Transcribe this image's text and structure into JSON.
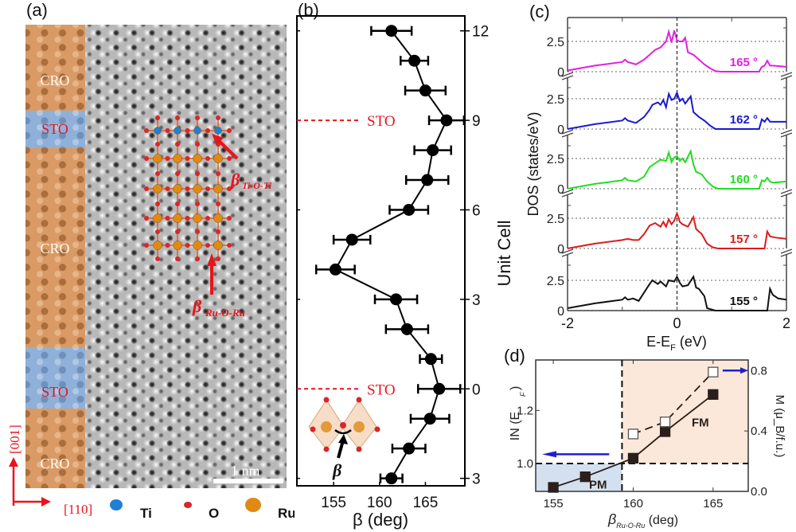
{
  "panels": {
    "a": {
      "label": "(a)",
      "layers": [
        {
          "name": "CRO",
          "type": "CRO"
        },
        {
          "name": "STO",
          "type": "STO"
        },
        {
          "name": "CRO",
          "type": "CRO"
        },
        {
          "name": "STO",
          "type": "STO"
        },
        {
          "name": "CRO",
          "type": "CRO"
        }
      ],
      "colors": {
        "CRO": "#d99a66",
        "STO": "#8fb0d8",
        "label_CRO": "#fffaf0",
        "label_STO": "#e8141c",
        "annotation": "#e8141c"
      },
      "annotations": {
        "beta_ti": {
          "symbol": "β",
          "subscript": "Ti-O-Ti"
        },
        "beta_ru": {
          "symbol": "β",
          "subscript": "Ru-O-Ru"
        }
      },
      "scale_bar": "1 nm",
      "axes": {
        "vertical": "[001]",
        "horizontal": "[110]"
      },
      "legend": [
        {
          "label": "Ti",
          "color": "#1e7fd6"
        },
        {
          "label": "O",
          "color": "#d9262a"
        },
        {
          "label": "Ru",
          "color": "#e08a14"
        }
      ]
    }
  },
  "chart_data": [
    {
      "id": "b",
      "label": "(b)",
      "type": "scatter",
      "title": "",
      "xlabel": "β (deg)",
      "ylabel": "Unit Cell",
      "xlim": [
        151,
        169.3
      ],
      "ylim": [
        -3.25,
        12.5
      ],
      "xticks": [
        155,
        160,
        165
      ],
      "yticks": [
        12,
        9,
        6,
        3,
        0,
        -3
      ],
      "ytick_labels": [
        "12",
        "9",
        "6",
        "3",
        "0",
        "3"
      ],
      "y_axis_side": "right",
      "series": [
        {
          "name": "β per unit cell",
          "x": [
            161.3,
            163.8,
            165.0,
            167.3,
            165.8,
            165.2,
            163.2,
            157.0,
            155.2,
            161.8,
            163.0,
            165.6,
            166.5,
            165.5,
            163.2,
            161.3
          ],
          "y": [
            12,
            11,
            10,
            9,
            8,
            7,
            6,
            5,
            4,
            3,
            2,
            1,
            0,
            -1,
            -2,
            -3
          ],
          "xerr": [
            2.2,
            1.5,
            2.2,
            1.9,
            2.0,
            2.3,
            2.1,
            2.0,
            2.1,
            2.3,
            2.3,
            1.2,
            2.3,
            2.1,
            1.8,
            1.2
          ]
        }
      ],
      "annotations": [
        {
          "text": "STO",
          "y": 9,
          "style": "red dashed line"
        },
        {
          "text": "STO",
          "y": 0,
          "style": "red dashed line"
        },
        {
          "text": "β",
          "note": "octahedra inset"
        }
      ]
    },
    {
      "id": "c",
      "label": "(c)",
      "type": "line",
      "xlabel": "E-E_F (eV)",
      "ylabel": "DOS (states/eV)",
      "xlim": [
        -2,
        2
      ],
      "xticks": [
        -2,
        0,
        2
      ],
      "ylim_per_panel": [
        0,
        3.2
      ],
      "yticks": [
        0,
        2.5
      ],
      "grid": "dotted at 0 and 2.5; dashed vertical at E=0",
      "series": [
        {
          "name": "165 °",
          "color": "#e020e0",
          "x": [
            -2,
            -1.5,
            -1.0,
            -0.95,
            -0.9,
            -0.75,
            -0.6,
            -0.5,
            -0.4,
            -0.3,
            -0.2,
            -0.15,
            -0.1,
            -0.05,
            0.0,
            0.05,
            0.1,
            0.15,
            0.2,
            0.25,
            0.3,
            0.4,
            0.5,
            0.6,
            0.7,
            0.8,
            1.0,
            1.2,
            1.4,
            1.5,
            1.55,
            1.6,
            1.65,
            1.7,
            1.75,
            2.0
          ],
          "y": [
            0.1,
            0.5,
            0.8,
            1.0,
            0.8,
            0.6,
            1.0,
            1.4,
            1.8,
            2.0,
            2.5,
            3.3,
            2.4,
            3.4,
            2.6,
            2.5,
            2.5,
            2.8,
            1.6,
            1.5,
            1.4,
            1.0,
            0.6,
            0.3,
            0.05,
            0.0,
            0.0,
            0.0,
            0.0,
            0.0,
            0.4,
            0.5,
            0.9,
            0.5,
            0.5,
            0.4
          ]
        },
        {
          "name": "162 °",
          "color": "#1a1ad0",
          "x": [
            -2,
            -1.5,
            -1.0,
            -0.95,
            -0.9,
            -0.75,
            -0.6,
            -0.5,
            -0.45,
            -0.35,
            -0.3,
            -0.25,
            -0.2,
            -0.15,
            -0.1,
            -0.05,
            0.0,
            0.05,
            0.1,
            0.15,
            0.25,
            0.3,
            0.4,
            0.5,
            0.6,
            0.7,
            1.0,
            1.2,
            1.5,
            1.55,
            1.6,
            1.65,
            1.7,
            1.75,
            2.0
          ],
          "y": [
            0.0,
            0.4,
            0.7,
            0.9,
            0.7,
            0.5,
            1.0,
            1.6,
            2.0,
            2.2,
            2.0,
            2.4,
            1.8,
            2.9,
            2.4,
            2.5,
            3.0,
            2.3,
            2.5,
            2.1,
            2.7,
            1.4,
            1.0,
            0.7,
            0.3,
            0.0,
            0.0,
            0.0,
            0.0,
            0.8,
            0.6,
            0.9,
            0.6,
            0.6,
            0.6
          ]
        },
        {
          "name": "160 °",
          "color": "#22dd22",
          "x": [
            -2,
            -1.5,
            -1.0,
            -0.95,
            -0.9,
            -0.75,
            -0.6,
            -0.5,
            -0.4,
            -0.3,
            -0.2,
            -0.15,
            -0.1,
            -0.05,
            0.0,
            0.05,
            0.1,
            0.15,
            0.25,
            0.3,
            0.35,
            0.45,
            0.55,
            0.65,
            0.75,
            1.0,
            1.2,
            1.5,
            1.55,
            1.6,
            1.65,
            1.7,
            1.75,
            2.0
          ],
          "y": [
            0.0,
            0.4,
            0.7,
            0.9,
            0.7,
            0.6,
            1.0,
            1.8,
            2.1,
            2.4,
            2.3,
            3.0,
            2.2,
            2.6,
            2.7,
            2.3,
            2.5,
            2.2,
            3.1,
            2.0,
            1.4,
            1.2,
            0.6,
            0.2,
            0.0,
            0.0,
            0.0,
            0.0,
            0.7,
            0.6,
            0.9,
            0.6,
            0.5,
            0.6
          ]
        },
        {
          "name": "157 °",
          "color": "#dd1a1a",
          "x": [
            -2,
            -1.5,
            -1.0,
            -0.9,
            -0.8,
            -0.7,
            -0.6,
            -0.5,
            -0.4,
            -0.3,
            -0.25,
            -0.2,
            -0.15,
            -0.1,
            -0.05,
            0.0,
            0.05,
            0.1,
            0.2,
            0.3,
            0.35,
            0.45,
            0.55,
            0.65,
            0.75,
            1.0,
            1.3,
            1.6,
            1.65,
            1.7,
            1.8,
            2.0
          ],
          "y": [
            0.0,
            0.4,
            0.7,
            0.8,
            0.7,
            0.7,
            1.2,
            1.9,
            2.1,
            1.8,
            2.2,
            1.8,
            2.4,
            2.0,
            2.3,
            2.9,
            2.2,
            2.0,
            1.8,
            2.6,
            1.6,
            1.2,
            0.4,
            0.1,
            0.0,
            0.0,
            0.0,
            0.0,
            1.4,
            1.0,
            0.9,
            0.8
          ]
        },
        {
          "name": "155 °",
          "color": "#111111",
          "x": [
            -2,
            -1.5,
            -1.0,
            -0.95,
            -0.9,
            -0.8,
            -0.7,
            -0.6,
            -0.5,
            -0.45,
            -0.35,
            -0.3,
            -0.2,
            -0.15,
            -0.05,
            0.0,
            0.05,
            0.1,
            0.2,
            0.3,
            0.35,
            0.4,
            0.5,
            0.55,
            0.7,
            1.0,
            1.3,
            1.65,
            1.7,
            1.75,
            1.85,
            2.0
          ],
          "y": [
            0.2,
            0.6,
            0.9,
            1.1,
            0.9,
            1.0,
            0.8,
            1.5,
            2.2,
            2.5,
            2.2,
            2.4,
            2.0,
            2.5,
            2.4,
            2.8,
            2.3,
            2.0,
            2.1,
            2.8,
            1.9,
            1.8,
            1.2,
            0.2,
            0.0,
            0.0,
            0.0,
            0.0,
            1.8,
            1.3,
            1.0,
            0.9
          ]
        }
      ]
    },
    {
      "id": "d",
      "label": "(d)",
      "type": "scatter",
      "xlabel": "β_Ru-O-Ru (deg)",
      "ylabel_left": "IN (E_F)",
      "ylabel_right": "M (μ_B/f.u.)",
      "xlim": [
        153.9,
        167.2
      ],
      "xticks": [
        155,
        160,
        165
      ],
      "ylim_left": [
        0.895,
        1.39
      ],
      "yticks_left": [
        1.0,
        1.2
      ],
      "ylim_right": [
        0.0,
        0.87
      ],
      "yticks_right": [
        0.0,
        0.4,
        0.8
      ],
      "series": [
        {
          "name": "IN(E_F)",
          "axis": "left",
          "marker": "filled-square",
          "style": "solid",
          "color": "#2a1f1a",
          "x": [
            155,
            157,
            160,
            162,
            165
          ],
          "y": [
            0.91,
            0.95,
            1.02,
            1.12,
            1.26
          ]
        },
        {
          "name": "M",
          "axis": "right",
          "marker": "open-square",
          "style": "dashed",
          "color": "#2a1f1a",
          "x": [
            160,
            162,
            165
          ],
          "y": [
            0.38,
            0.46,
            0.79
          ]
        }
      ],
      "regions": [
        {
          "label": "PM",
          "x": [
            153.9,
            159.3
          ],
          "y_left": [
            0.895,
            1.0
          ],
          "color": "#d3e0ef"
        },
        {
          "label": "FM",
          "x": [
            159.3,
            167.2
          ],
          "y_left": [
            1.0,
            1.39
          ],
          "color": "#fbe8da"
        }
      ],
      "reference_lines": {
        "vertical_x": 159.3,
        "horizontal_left_y": 1.0
      },
      "arrows": [
        {
          "direction": "left",
          "color": "#2020c8"
        },
        {
          "direction": "right",
          "color": "#2020c8"
        }
      ]
    }
  ]
}
